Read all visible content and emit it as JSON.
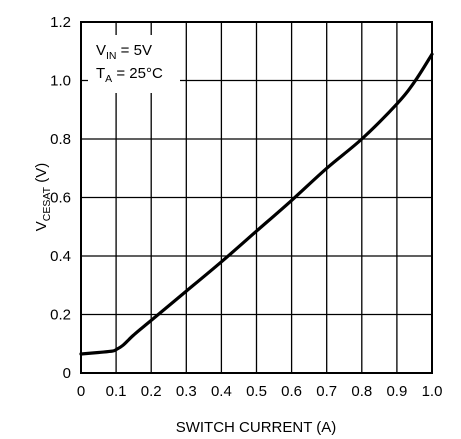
{
  "chart_data": {
    "type": "line",
    "title": "",
    "xlabel": "SWITCH CURRENT (A)",
    "ylabel": {
      "main": "V",
      "sub": "CESAT",
      "unit": " (V)"
    },
    "xlim": [
      0,
      1.0
    ],
    "ylim": [
      0,
      1.2
    ],
    "x_ticks": [
      "0",
      "0.1",
      "0.2",
      "0.3",
      "0.4",
      "0.5",
      "0.6",
      "0.7",
      "0.8",
      "0.9",
      "1.0"
    ],
    "y_ticks": [
      "0",
      "0.2",
      "0.4",
      "0.6",
      "0.8",
      "1.0",
      "1.2"
    ],
    "grid": true,
    "annotations": [
      {
        "main": "V",
        "sub": "IN",
        "rest": " = 5V"
      },
      {
        "main": "T",
        "sub": "A",
        "rest": " = 25°C"
      }
    ],
    "series": [
      {
        "x": [
          0,
          0.05,
          0.09,
          0.1,
          0.12,
          0.15,
          0.2,
          0.3,
          0.4,
          0.5,
          0.6,
          0.7,
          0.8,
          0.9,
          0.95,
          1.0
        ],
        "y": [
          0.065,
          0.07,
          0.075,
          0.08,
          0.095,
          0.13,
          0.18,
          0.28,
          0.38,
          0.485,
          0.59,
          0.7,
          0.8,
          0.92,
          0.995,
          1.09
        ]
      }
    ]
  }
}
